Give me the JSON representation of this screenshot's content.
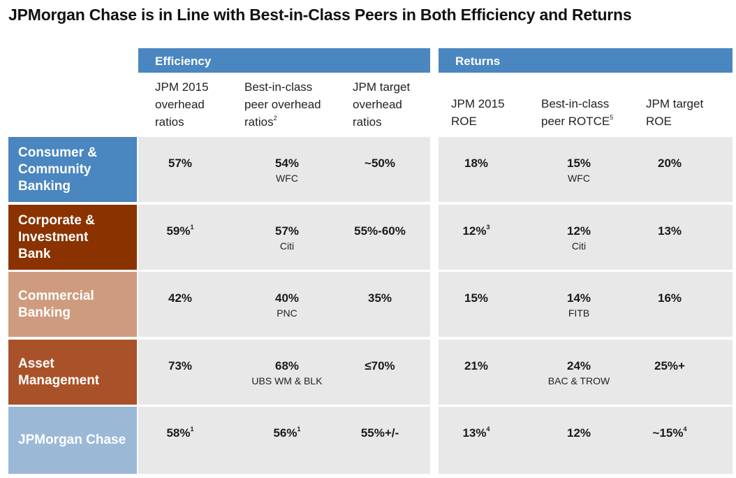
{
  "title": "JPMorgan Chase is in Line with Best-in-Class Peers in Both Efficiency and Returns",
  "groups": {
    "efficiency": "Efficiency",
    "returns": "Returns"
  },
  "columns": {
    "eff_jpm": [
      "JPM 2015",
      "overhead",
      "ratios"
    ],
    "eff_peer": [
      "Best-in-class",
      "peer overhead",
      "ratios"
    ],
    "eff_peer_sup": "2",
    "eff_target": [
      "JPM target",
      "overhead",
      "ratios"
    ],
    "ret_jpm": [
      "JPM 2015",
      "ROE"
    ],
    "ret_peer": [
      "Best-in-class",
      "peer ROTCE"
    ],
    "ret_peer_sup": "5",
    "ret_target": [
      "JPM target",
      "ROE"
    ]
  },
  "rows": [
    {
      "label": [
        "Consumer &",
        "Community",
        "Banking"
      ],
      "color": "#4a86c0",
      "eff_jpm": "57%",
      "eff_jpm_sup": "",
      "eff_peer": "54%",
      "eff_peer_sup": "",
      "eff_peer_name": "WFC",
      "eff_target": "~50%",
      "ret_jpm": "18%",
      "ret_jpm_sup": "",
      "ret_peer": "15%",
      "ret_peer_name": "WFC",
      "ret_target": "20%",
      "ret_target_sup": ""
    },
    {
      "label": [
        "Corporate &",
        "Investment",
        "Bank"
      ],
      "color": "#8b3300",
      "eff_jpm": "59%",
      "eff_jpm_sup": "1",
      "eff_peer": "57%",
      "eff_peer_sup": "",
      "eff_peer_name": "Citi",
      "eff_target": "55%-60%",
      "ret_jpm": "12%",
      "ret_jpm_sup": "3",
      "ret_peer": "12%",
      "ret_peer_name": "Citi",
      "ret_target": "13%",
      "ret_target_sup": ""
    },
    {
      "label": [
        "Commercial",
        "Banking"
      ],
      "color": "#cf9b7f",
      "eff_jpm": "42%",
      "eff_jpm_sup": "",
      "eff_peer": "40%",
      "eff_peer_sup": "",
      "eff_peer_name": "PNC",
      "eff_target": "35%",
      "ret_jpm": "15%",
      "ret_jpm_sup": "",
      "ret_peer": "14%",
      "ret_peer_name": "FITB",
      "ret_target": "16%",
      "ret_target_sup": ""
    },
    {
      "label": [
        "Asset",
        "Management"
      ],
      "color": "#a9522a",
      "eff_jpm": "73%",
      "eff_jpm_sup": "",
      "eff_peer": "68%",
      "eff_peer_sup": "",
      "eff_peer_name": "UBS WM & BLK",
      "eff_target": "≤70%",
      "ret_jpm": "21%",
      "ret_jpm_sup": "",
      "ret_peer": "24%",
      "ret_peer_name": "BAC & TROW",
      "ret_target": "25%+",
      "ret_target_sup": ""
    },
    {
      "label": [
        "JPMorgan Chase"
      ],
      "color": "#9bb8d7",
      "eff_jpm": "58%",
      "eff_jpm_sup": "1",
      "eff_peer": "56%",
      "eff_peer_sup": "1",
      "eff_peer_name": "",
      "eff_target": "55%+/-",
      "ret_jpm": "13%",
      "ret_jpm_sup": "4",
      "ret_peer": "12%",
      "ret_peer_name": "",
      "ret_target": "~15%",
      "ret_target_sup": "4"
    }
  ]
}
